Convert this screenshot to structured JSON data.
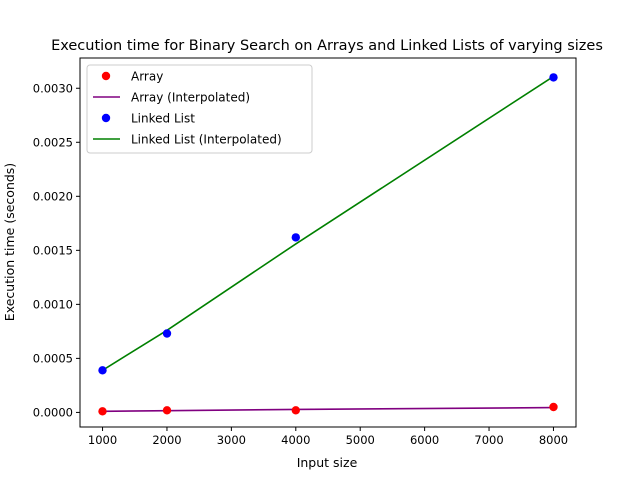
{
  "chart_data": {
    "type": "scatter",
    "title": "Execution time for Binary Search on Arrays and Linked Lists of varying sizes",
    "xlabel": "Input size",
    "ylabel": "Execution time (seconds)",
    "xlim": [
      650,
      8350
    ],
    "ylim": [
      -0.000135,
      0.00328
    ],
    "x_ticks": [
      1000,
      2000,
      3000,
      4000,
      5000,
      6000,
      7000,
      8000
    ],
    "x_tick_labels": [
      "1000",
      "2000",
      "3000",
      "4000",
      "5000",
      "6000",
      "7000",
      "8000"
    ],
    "y_ticks": [
      0.0,
      0.0005,
      0.001,
      0.0015,
      0.002,
      0.0025,
      0.003
    ],
    "y_tick_labels": [
      "0.0000",
      "0.0005",
      "0.0010",
      "0.0015",
      "0.0020",
      "0.0025",
      "0.0030"
    ],
    "grid": false,
    "legend_position": "upper-left",
    "x": [
      1000,
      2000,
      4000,
      8000
    ],
    "series": [
      {
        "name": "Array",
        "kind": "scatter",
        "color": "#ff0000",
        "values": [
          1e-05,
          2e-05,
          2e-05,
          5e-05
        ]
      },
      {
        "name": "Array (Interpolated)",
        "kind": "line",
        "color": "#800080",
        "values": [
          1e-05,
          1.6e-05,
          2.8e-05,
          4.5e-05
        ]
      },
      {
        "name": "Linked List",
        "kind": "scatter",
        "color": "#0000ff",
        "values": [
          0.00039,
          0.00073,
          0.00162,
          0.0031
        ]
      },
      {
        "name": "Linked List (Interpolated)",
        "kind": "line",
        "color": "#008000",
        "values": [
          0.00039,
          0.00076,
          0.00156,
          0.00311
        ]
      }
    ]
  }
}
